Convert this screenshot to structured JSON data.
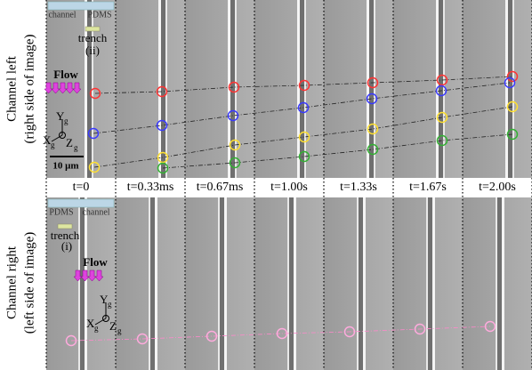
{
  "top_panel": {
    "side_label": "Channel left",
    "side_sublabel": "(right side of image)",
    "region_labels": [
      "channel",
      "PDMS"
    ],
    "trench_label": "trench",
    "trench_id": "(ii)",
    "flow_label": "Flow",
    "axes": {
      "y": "Y",
      "y_sub": "g",
      "x": "X",
      "x_sub": "g",
      "z": "Z",
      "z_sub": "g"
    },
    "scale_bar": "10 μm"
  },
  "time_labels": [
    "t=0",
    "t=0.33ms",
    "t=0.67ms",
    "t=1.00s",
    "t=1.33s",
    "t=1.67s",
    "t=2.00s"
  ],
  "bottom_panel": {
    "side_label": "Channel right",
    "side_sublabel": "(left side of image)",
    "region_labels": [
      "PDMS",
      "channel"
    ],
    "trench_label": "trench",
    "trench_id": "(i)",
    "flow_label": "Flow",
    "axes": {
      "y": "Y",
      "y_sub": "g",
      "x": "X",
      "x_sub": "g",
      "z": "Z",
      "z_sub": "g"
    }
  }
}
